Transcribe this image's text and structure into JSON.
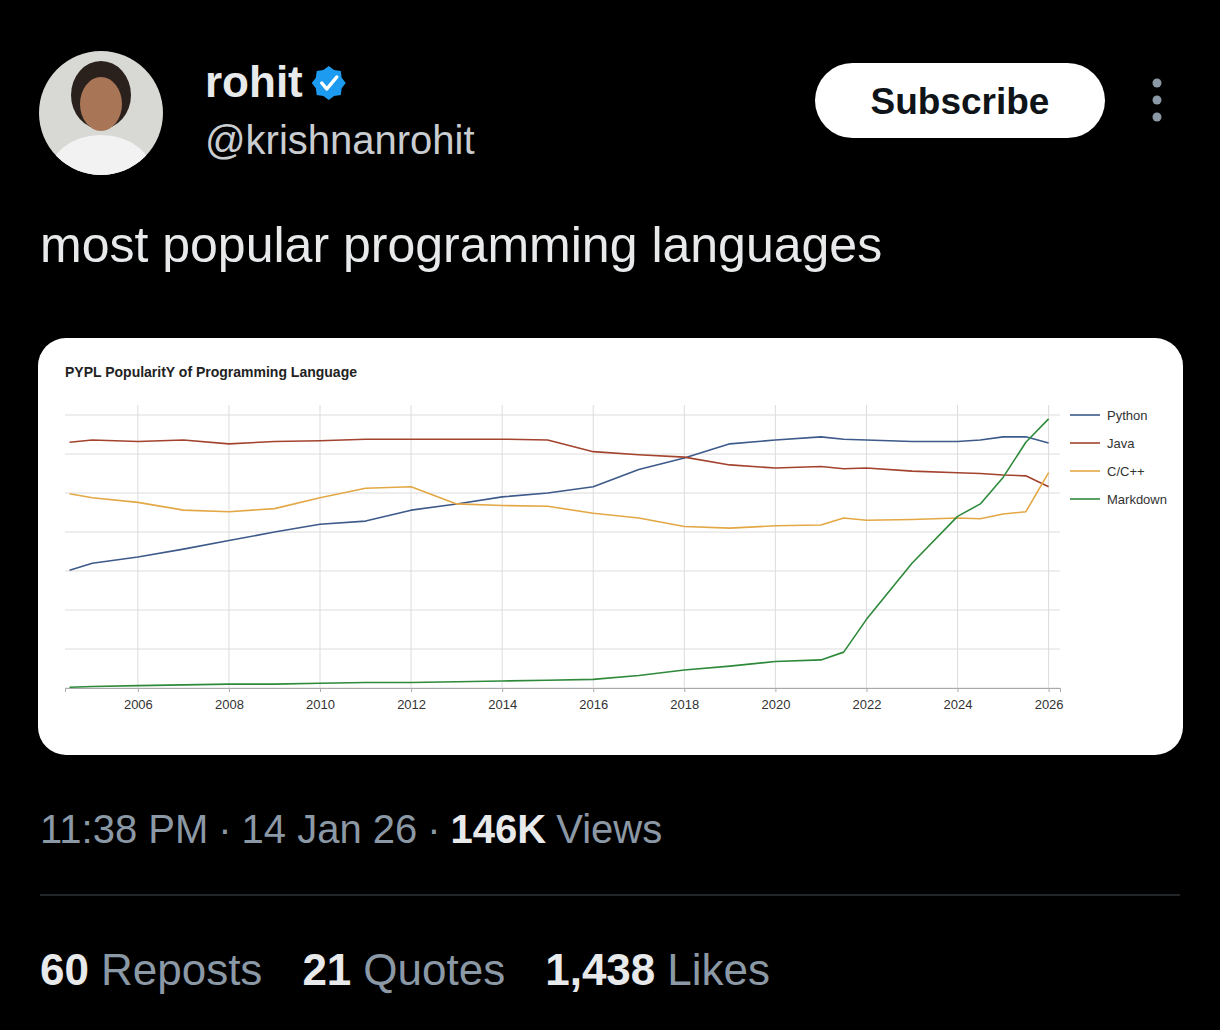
{
  "tweet": {
    "display_name": "rohit",
    "handle": "@krishnanrohit",
    "button": "Subscribe",
    "text": "most popular programming languages",
    "time": "11:38 PM",
    "separator": "·",
    "date": "14 Jan 26",
    "views": "146K",
    "views_label": "Views",
    "reposts": "60",
    "reposts_label": "Reposts",
    "quotes": "21",
    "quotes_label": "Quotes",
    "likes": "1,438",
    "likes_label": "Likes"
  },
  "chart_data": {
    "type": "line",
    "title": "PYPL PopularitY of Programming Language",
    "x": [
      2004.5,
      2005,
      2006,
      2007,
      2008,
      2009,
      2010,
      2011,
      2012,
      2013,
      2014,
      2015,
      2016,
      2017,
      2018,
      2019,
      2020,
      2021,
      2021.5,
      2022,
      2023,
      2024,
      2024.5,
      2025,
      2025.5,
      2026
    ],
    "series": [
      {
        "name": "Python",
        "color": "#3d5a8a",
        "values": [
          15.1,
          16.0,
          16.8,
          17.8,
          18.9,
          20.0,
          21.0,
          21.4,
          22.8,
          23.6,
          24.5,
          25.0,
          25.8,
          28.0,
          29.5,
          31.3,
          31.8,
          32.2,
          31.9,
          31.8,
          31.6,
          31.6,
          31.8,
          32.2,
          32.2,
          31.4
        ]
      },
      {
        "name": "Java",
        "color": "#a3432e",
        "values": [
          31.5,
          31.8,
          31.6,
          31.8,
          31.3,
          31.6,
          31.7,
          31.9,
          31.9,
          31.9,
          31.9,
          31.8,
          30.3,
          29.9,
          29.6,
          28.6,
          28.2,
          28.4,
          28.1,
          28.2,
          27.8,
          27.6,
          27.5,
          27.3,
          27.2,
          25.8
        ]
      },
      {
        "name": "C/C++",
        "color": "#e3a845",
        "values": [
          24.9,
          24.4,
          23.8,
          22.8,
          22.6,
          23.0,
          24.4,
          25.6,
          25.8,
          23.6,
          23.4,
          23.3,
          22.4,
          21.8,
          20.7,
          20.5,
          20.8,
          20.9,
          21.8,
          21.5,
          21.6,
          21.8,
          21.7,
          22.3,
          22.6,
          27.6
        ]
      },
      {
        "name": "Markdown",
        "color": "#2e8a3a",
        "values": [
          0.1,
          0.2,
          0.3,
          0.4,
          0.5,
          0.5,
          0.6,
          0.7,
          0.7,
          0.8,
          0.9,
          1.0,
          1.1,
          1.6,
          2.3,
          2.8,
          3.4,
          3.6,
          4.6,
          8.8,
          16.0,
          22.0,
          23.6,
          27.0,
          31.5,
          34.5
        ]
      }
    ],
    "xlim": [
      2004.4,
      2026.25
    ],
    "xticks": [
      2006,
      2008,
      2010,
      2012,
      2014,
      2016,
      2018,
      2020,
      2022,
      2024,
      2026
    ],
    "ylim": [
      0,
      35
    ],
    "yticks": [
      0,
      5,
      10,
      15,
      20,
      25,
      30,
      35
    ],
    "grid": true,
    "legend": "right",
    "tick_labels": "x"
  }
}
